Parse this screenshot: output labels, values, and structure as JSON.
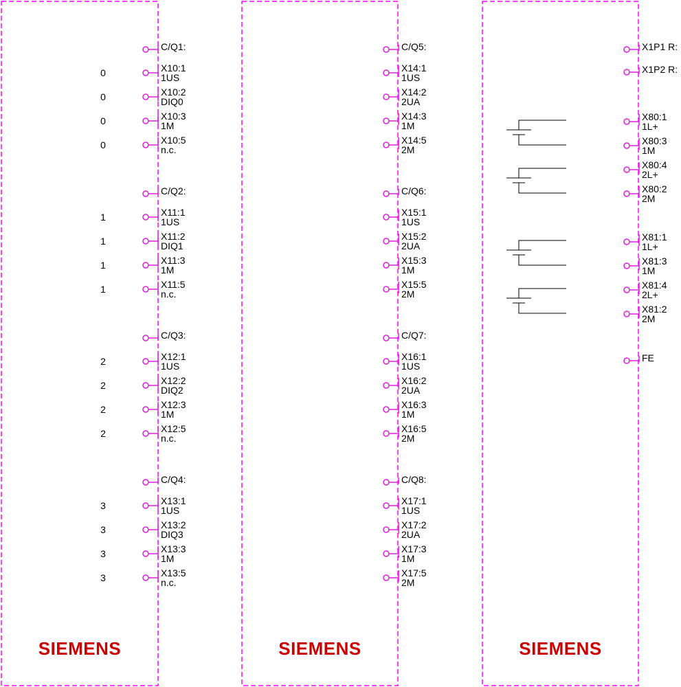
{
  "colors": {
    "module_border": "#ff00ff",
    "terminal": "#e01ee0",
    "logo": "#cc0000",
    "line": "#000000"
  },
  "logo_text": "SIEMENS",
  "modules": [
    {
      "groups": [
        {
          "terminals": [
            {
              "l1": "C/Q1:",
              "l2": "",
              "idx": ""
            },
            {
              "l1": "X10:1",
              "l2": "1US",
              "idx": "0"
            },
            {
              "l1": "X10:2",
              "l2": "DIQ0",
              "idx": "0"
            },
            {
              "l1": "X10:3",
              "l2": "1M",
              "idx": "0"
            },
            {
              "l1": "X10:5",
              "l2": "n.c.",
              "idx": "0"
            }
          ]
        },
        {
          "terminals": [
            {
              "l1": "C/Q2:",
              "l2": "",
              "idx": ""
            },
            {
              "l1": "X11:1",
              "l2": "1US",
              "idx": "1"
            },
            {
              "l1": "X11:2",
              "l2": "DIQ1",
              "idx": "1"
            },
            {
              "l1": "X11:3",
              "l2": "1M",
              "idx": "1"
            },
            {
              "l1": "X11:5",
              "l2": "n.c.",
              "idx": "1"
            }
          ]
        },
        {
          "terminals": [
            {
              "l1": "C/Q3:",
              "l2": "",
              "idx": ""
            },
            {
              "l1": "X12:1",
              "l2": "1US",
              "idx": "2"
            },
            {
              "l1": "X12:2",
              "l2": "DIQ2",
              "idx": "2"
            },
            {
              "l1": "X12:3",
              "l2": "1M",
              "idx": "2"
            },
            {
              "l1": "X12:5",
              "l2": "n.c.",
              "idx": "2"
            }
          ]
        },
        {
          "terminals": [
            {
              "l1": "C/Q4:",
              "l2": "",
              "idx": ""
            },
            {
              "l1": "X13:1",
              "l2": "1US",
              "idx": "3"
            },
            {
              "l1": "X13:2",
              "l2": "DIQ3",
              "idx": "3"
            },
            {
              "l1": "X13:3",
              "l2": "1M",
              "idx": "3"
            },
            {
              "l1": "X13:5",
              "l2": "n.c.",
              "idx": "3"
            }
          ]
        }
      ]
    },
    {
      "groups": [
        {
          "terminals": [
            {
              "l1": "C/Q5:",
              "l2": "",
              "idx": ""
            },
            {
              "l1": "X14:1",
              "l2": "1US",
              "idx": ""
            },
            {
              "l1": "X14:2",
              "l2": "2UA",
              "idx": ""
            },
            {
              "l1": "X14:3",
              "l2": "1M",
              "idx": ""
            },
            {
              "l1": "X14:5",
              "l2": "2M",
              "idx": ""
            }
          ]
        },
        {
          "terminals": [
            {
              "l1": "C/Q6:",
              "l2": "",
              "idx": ""
            },
            {
              "l1": "X15:1",
              "l2": "1US",
              "idx": ""
            },
            {
              "l1": "X15:2",
              "l2": "2UA",
              "idx": ""
            },
            {
              "l1": "X15:3",
              "l2": "1M",
              "idx": ""
            },
            {
              "l1": "X15:5",
              "l2": "2M",
              "idx": ""
            }
          ]
        },
        {
          "terminals": [
            {
              "l1": "C/Q7:",
              "l2": "",
              "idx": ""
            },
            {
              "l1": "X16:1",
              "l2": "1US",
              "idx": ""
            },
            {
              "l1": "X16:2",
              "l2": "2UA",
              "idx": ""
            },
            {
              "l1": "X16:3",
              "l2": "1M",
              "idx": ""
            },
            {
              "l1": "X16:5",
              "l2": "2M",
              "idx": ""
            }
          ]
        },
        {
          "terminals": [
            {
              "l1": "C/Q8:",
              "l2": "",
              "idx": ""
            },
            {
              "l1": "X17:1",
              "l2": "1US",
              "idx": ""
            },
            {
              "l1": "X17:2",
              "l2": "2UA",
              "idx": ""
            },
            {
              "l1": "X17:3",
              "l2": "1M",
              "idx": ""
            },
            {
              "l1": "X17:5",
              "l2": "2M",
              "idx": ""
            }
          ]
        }
      ]
    },
    {
      "terminals": [
        {
          "l1": "X1P1 R:",
          "l2": ""
        },
        {
          "l1": "X1P2 R:",
          "l2": ""
        },
        {
          "l1": "X80:1",
          "l2": "1L+"
        },
        {
          "l1": "X80:3",
          "l2": "1M"
        },
        {
          "l1": "X80:4",
          "l2": "2L+"
        },
        {
          "l1": "X80:2",
          "l2": "2M"
        },
        {
          "l1": "X81:1",
          "l2": "1L+"
        },
        {
          "l1": "X81:3",
          "l2": "1M"
        },
        {
          "l1": "X81:4",
          "l2": "2L+"
        },
        {
          "l1": "X81:2",
          "l2": "2M"
        },
        {
          "l1": "FE",
          "l2": ""
        }
      ]
    }
  ]
}
